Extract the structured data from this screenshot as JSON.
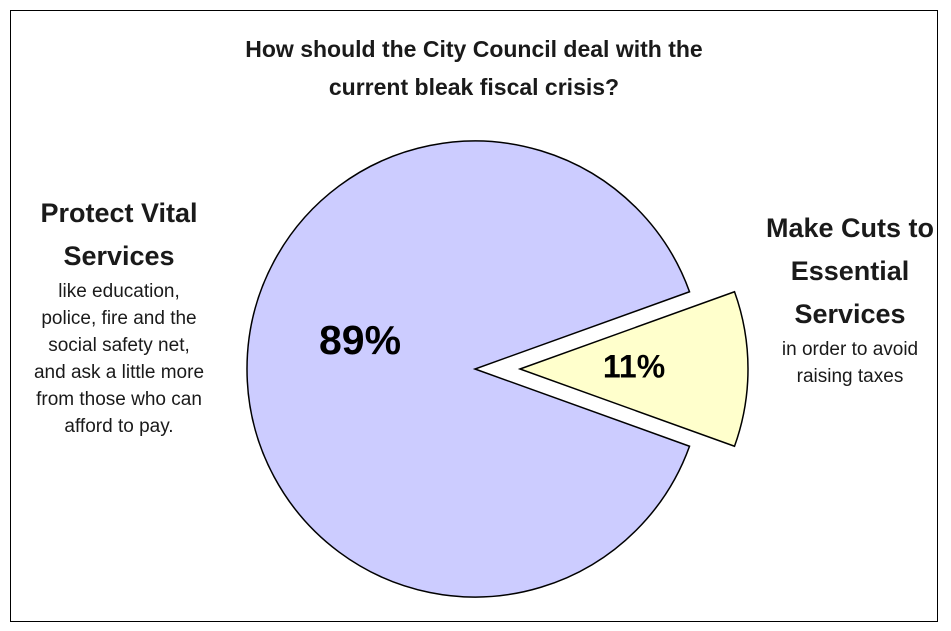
{
  "chart_data": {
    "type": "pie",
    "title_lines": [
      "How should the City Council deal with the",
      "current bleak fiscal crisis?"
    ],
    "slices": [
      {
        "value": 89,
        "label": "89%",
        "title_lines": [
          "Protect Vital",
          "Services"
        ],
        "description_lines": [
          "like education,",
          "police, fire and the",
          "social safety net,",
          "and ask a little more",
          "from those who can",
          "afford to pay."
        ],
        "color": "#ccccff",
        "exploded": false
      },
      {
        "value": 11,
        "label": "11%",
        "title_lines": [
          "Make Cuts to",
          "Essential",
          "Services"
        ],
        "description_lines": [
          "in order to avoid",
          "raising taxes"
        ],
        "color": "#ffffcc",
        "exploded": true
      }
    ],
    "stroke_color": "#000000",
    "legend": "none"
  }
}
